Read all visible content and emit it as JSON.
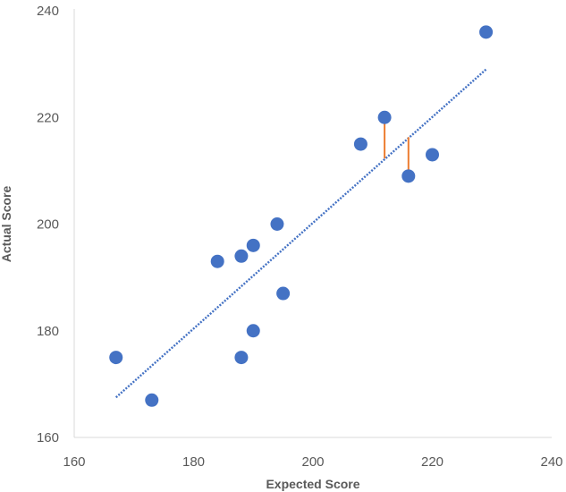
{
  "chart_data": {
    "type": "scatter",
    "title": "",
    "xlabel": "Expected Score",
    "ylabel": "Actual Score",
    "xlim": [
      160,
      240
    ],
    "ylim": [
      160,
      240
    ],
    "xticks": [
      "160",
      "180",
      "200",
      "220",
      "240"
    ],
    "yticks": [
      "160",
      "180",
      "200",
      "220",
      "240"
    ],
    "grid": false,
    "legend": "none",
    "series": [
      {
        "points": [
          {
            "x": 167,
            "y": 175
          },
          {
            "x": 173,
            "y": 167
          },
          {
            "x": 184,
            "y": 193
          },
          {
            "x": 188,
            "y": 194
          },
          {
            "x": 190,
            "y": 196
          },
          {
            "x": 194,
            "y": 200
          },
          {
            "x": 195,
            "y": 187
          },
          {
            "x": 190,
            "y": 180
          },
          {
            "x": 188,
            "y": 175
          },
          {
            "x": 208,
            "y": 215
          },
          {
            "x": 212,
            "y": 220
          },
          {
            "x": 216,
            "y": 209
          },
          {
            "x": 220,
            "y": 213
          },
          {
            "x": 229,
            "y": 236
          }
        ]
      }
    ],
    "trendline": {
      "style": "dotted",
      "from": {
        "x": 167,
        "y": 167.5
      },
      "to": {
        "x": 229,
        "y": 229
      }
    },
    "residuals": [
      {
        "x": 212,
        "y_point": 220,
        "y_line": 212.3
      },
      {
        "x": 216,
        "y_point": 209,
        "y_line": 216.3
      }
    ],
    "colors": {
      "points": "#4472C4",
      "trendline": "#4472C4",
      "residual": "#ED7D31",
      "axis": "#D9D9D9",
      "text": "#595959"
    }
  }
}
